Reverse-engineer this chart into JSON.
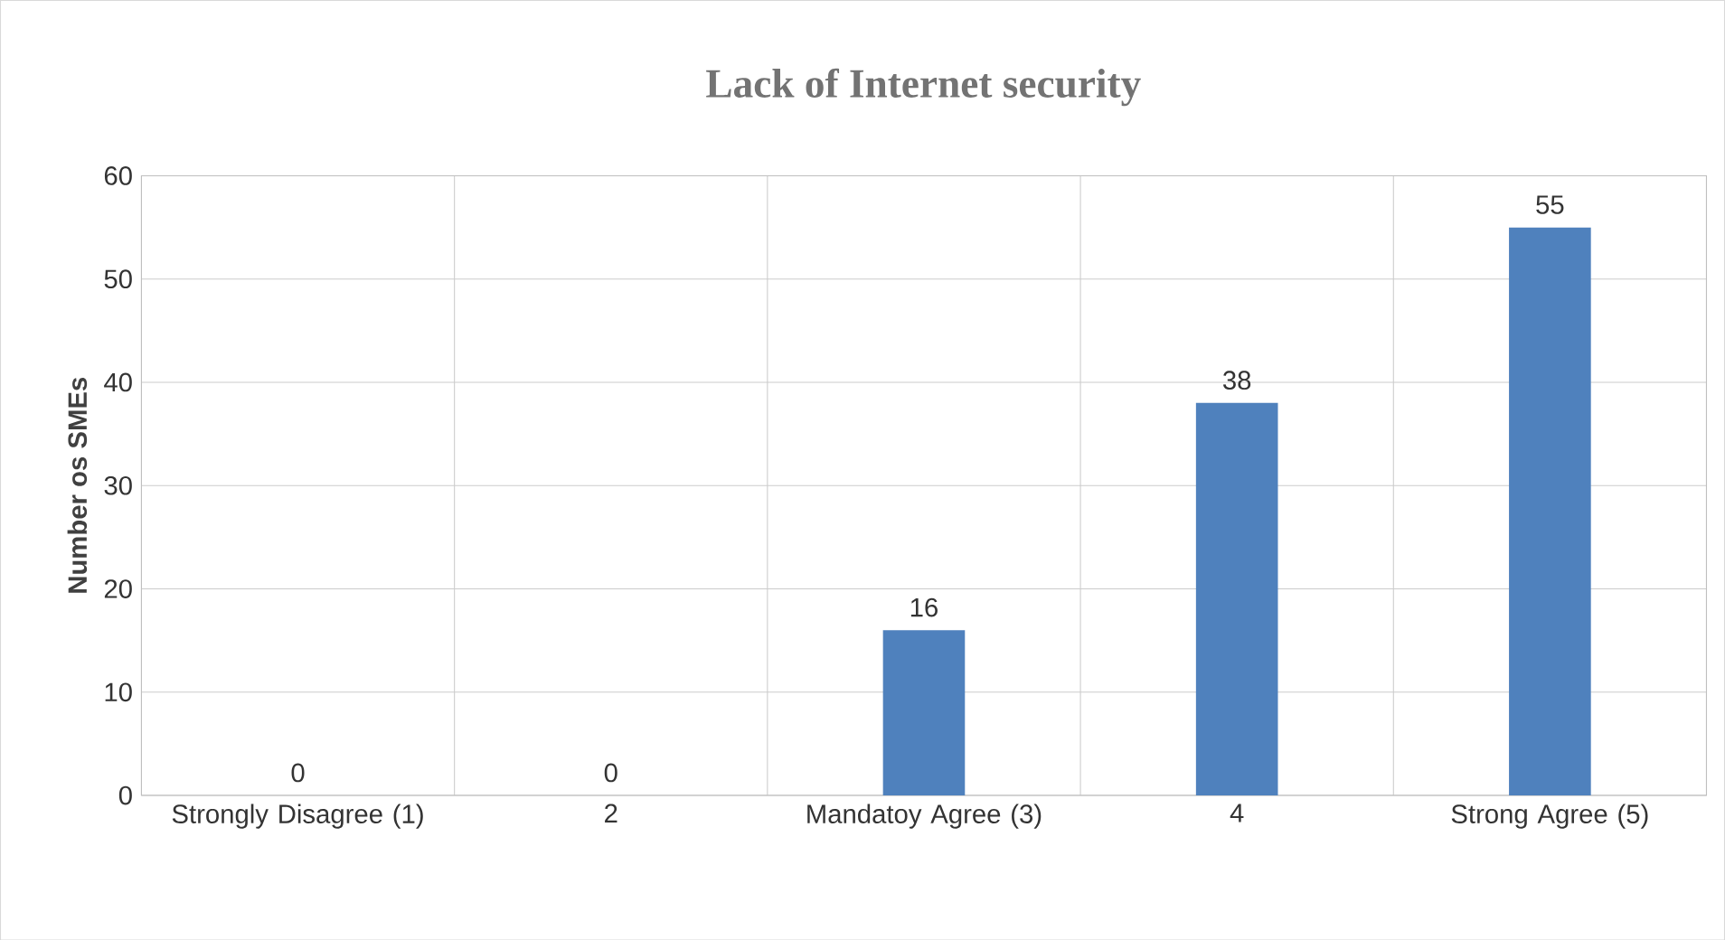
{
  "chart_data": {
    "type": "bar",
    "title": "Lack of Internet security",
    "ylabel": "Number os SMEs",
    "categories": [
      "Strongly Disagree (1)",
      "2",
      "Mandatoy Agree (3)",
      "4",
      "Strong Agree (5)"
    ],
    "values": [
      0,
      0,
      16,
      38,
      55
    ],
    "color": "#4f81bd",
    "ylim": [
      0,
      60
    ],
    "yticks": [
      0,
      10,
      20,
      30,
      40,
      50,
      60
    ],
    "grid": true,
    "data_labels": true
  }
}
